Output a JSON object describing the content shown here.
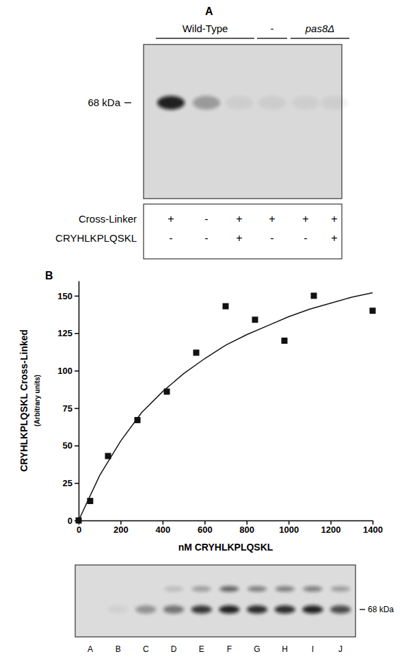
{
  "panel_a": {
    "letter": "A",
    "groups": [
      {
        "label": "Wild-Type",
        "lanes": [
          0,
          1,
          2
        ],
        "italic": false
      },
      {
        "label": "-",
        "lanes": [
          3
        ],
        "italic": false
      },
      {
        "label": "pas8Δ",
        "lanes": [
          4,
          5
        ],
        "italic": true
      }
    ],
    "marker_label": "68 kDa",
    "band_intensity": [
      0.9,
      0.3,
      0.05,
      0.06,
      0.05,
      0.05
    ],
    "rows": [
      {
        "label": "Cross-Linker",
        "values": [
          "+",
          "-",
          "+",
          "+",
          "+",
          "+"
        ]
      },
      {
        "label": "CRYHLKPLQSKL",
        "values": [
          "-",
          "-",
          "+",
          "-",
          "-",
          "+"
        ]
      }
    ]
  },
  "chart_data": {
    "type": "scatter",
    "letter": "B",
    "y_label": "CRYHLKPLQSKL Cross-Linked",
    "y_sublabel": "(Arbitrary units)",
    "x_label": "nM CRYHLKPLQSKL",
    "xlim": [
      0,
      1400
    ],
    "xticks": [
      0,
      200,
      400,
      600,
      800,
      1000,
      1200,
      1400
    ],
    "ylim": [
      0,
      160
    ],
    "yticks": [
      0,
      25,
      50,
      75,
      100,
      125,
      150
    ],
    "series": [
      {
        "type": "scatter",
        "marker": "square",
        "color": "#111111",
        "x": [
          0,
          55,
          140,
          280,
          420,
          560,
          700,
          840,
          980,
          1120,
          1400
        ],
        "values": [
          0,
          13,
          43,
          67,
          86,
          112,
          143,
          134,
          120,
          150,
          140
        ]
      },
      {
        "type": "line",
        "line_style": "solid",
        "color": "#111111",
        "x": [
          0,
          100,
          200,
          300,
          400,
          500,
          600,
          700,
          800,
          900,
          1000,
          1100,
          1200,
          1300,
          1400
        ],
        "values": [
          0,
          30,
          53,
          72,
          86,
          98,
          108,
          117,
          124,
          130,
          136,
          141,
          145,
          149,
          152
        ]
      }
    ]
  },
  "gel_b": {
    "lanes": [
      "A",
      "B",
      "C",
      "D",
      "E",
      "F",
      "G",
      "H",
      "I",
      "J"
    ],
    "marker_label": "68 kDa",
    "band_intensity": [
      0.0,
      0.05,
      0.35,
      0.5,
      0.8,
      0.9,
      0.85,
      0.85,
      0.9,
      0.7
    ],
    "upper_band_intensity": [
      0.0,
      0.0,
      0.0,
      0.15,
      0.3,
      0.6,
      0.45,
      0.45,
      0.45,
      0.3
    ]
  }
}
